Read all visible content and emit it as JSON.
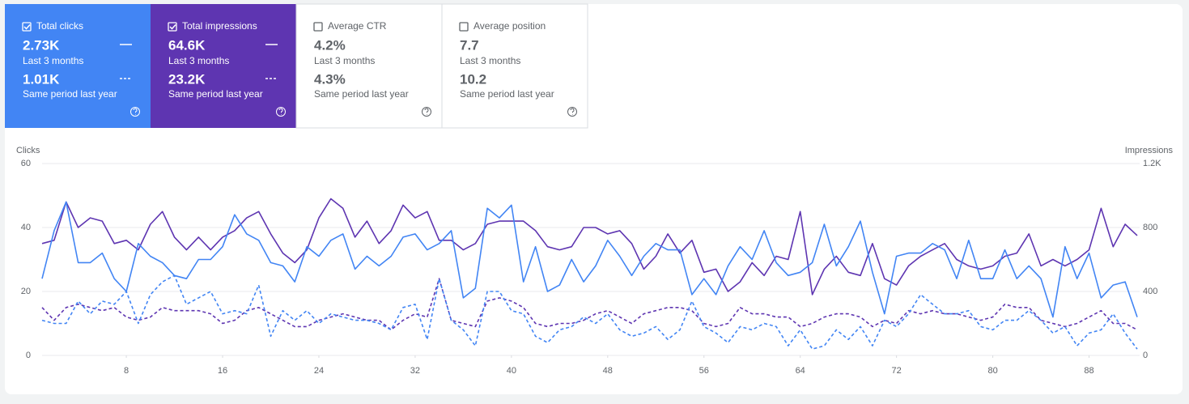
{
  "cards": [
    {
      "label": "Total clicks",
      "value": "2.73K",
      "period": "Last 3 months",
      "prior_value": "1.01K",
      "prior_period": "Same period last year",
      "selected": true,
      "color": "#4285f4"
    },
    {
      "label": "Total impressions",
      "value": "64.6K",
      "period": "Last 3 months",
      "prior_value": "23.2K",
      "prior_period": "Same period last year",
      "selected": true,
      "color": "#5e35b1"
    },
    {
      "label": "Average CTR",
      "value": "4.2%",
      "period": "Last 3 months",
      "prior_value": "4.3%",
      "prior_period": "Same period last year",
      "selected": false,
      "color": "#ffffff"
    },
    {
      "label": "Average position",
      "value": "7.7",
      "period": "Last 3 months",
      "prior_value": "10.2",
      "prior_period": "Same period last year",
      "selected": false,
      "color": "#ffffff"
    }
  ],
  "chart_data": {
    "type": "line",
    "y_label": "Clicks",
    "y2_label": "Impressions",
    "x": [
      1,
      2,
      3,
      4,
      5,
      6,
      7,
      8,
      9,
      10,
      11,
      12,
      13,
      14,
      15,
      16,
      17,
      18,
      19,
      20,
      21,
      22,
      23,
      24,
      25,
      26,
      27,
      28,
      29,
      30,
      31,
      32,
      33,
      34,
      35,
      36,
      37,
      38,
      39,
      40,
      41,
      42,
      43,
      44,
      45,
      46,
      47,
      48,
      49,
      50,
      51,
      52,
      53,
      54,
      55,
      56,
      57,
      58,
      59,
      60,
      61,
      62,
      63,
      64,
      65,
      66,
      67,
      68,
      69,
      70,
      71,
      72,
      73,
      74,
      75,
      76,
      77,
      78,
      79,
      80,
      81,
      82,
      83,
      84,
      85,
      86,
      87,
      88,
      89,
      90,
      91,
      92
    ],
    "xlim": [
      1,
      92
    ],
    "xticks": [
      8,
      16,
      24,
      32,
      40,
      48,
      56,
      64,
      72,
      80,
      88
    ],
    "ylim": [
      0,
      60
    ],
    "yticks": [
      0,
      20,
      40,
      60
    ],
    "y2lim": [
      0,
      1200
    ],
    "y2ticks": [
      0,
      400,
      800,
      {
        "value": 1200,
        "label": "1.2K"
      }
    ],
    "grid": true,
    "series": [
      {
        "color": "#5e35b1",
        "dashed": false,
        "axis": "y2",
        "values": [
          700,
          720,
          960,
          800,
          860,
          840,
          700,
          720,
          660,
          820,
          900,
          740,
          660,
          740,
          660,
          740,
          780,
          860,
          900,
          760,
          640,
          580,
          660,
          860,
          980,
          920,
          740,
          840,
          700,
          780,
          940,
          860,
          900,
          720,
          720,
          660,
          700,
          820,
          840,
          840,
          840,
          780,
          680,
          660,
          680,
          800,
          800,
          760,
          780,
          700,
          540,
          620,
          760,
          640,
          720,
          520,
          540,
          400,
          460,
          580,
          500,
          620,
          600,
          900,
          380,
          540,
          620,
          520,
          500,
          700,
          480,
          440,
          560,
          620,
          660,
          700,
          600,
          560,
          540,
          560,
          620,
          640,
          760,
          560,
          600,
          560,
          600,
          660,
          920,
          680,
          820,
          750
        ]
      },
      {
        "color": "#5e35b1",
        "dashed": true,
        "axis": "y2",
        "values": [
          300,
          220,
          300,
          320,
          300,
          280,
          300,
          240,
          220,
          240,
          300,
          280,
          280,
          280,
          260,
          200,
          220,
          280,
          300,
          260,
          220,
          180,
          180,
          220,
          240,
          260,
          240,
          220,
          220,
          160,
          220,
          260,
          240,
          480,
          220,
          200,
          180,
          340,
          360,
          340,
          300,
          200,
          180,
          200,
          200,
          220,
          260,
          280,
          240,
          200,
          260,
          280,
          300,
          300,
          280,
          200,
          180,
          200,
          300,
          260,
          260,
          240,
          240,
          180,
          200,
          240,
          260,
          260,
          240,
          180,
          220,
          200,
          280,
          260,
          280,
          260,
          260,
          240,
          220,
          240,
          320,
          300,
          300,
          220,
          200,
          180,
          200,
          240,
          280,
          200,
          200,
          160
        ]
      },
      {
        "color": "#4285f4",
        "dashed": false,
        "values": [
          24,
          39,
          48,
          29,
          29,
          32,
          24,
          20,
          35,
          31,
          29,
          25,
          24,
          30,
          30,
          34,
          44,
          38,
          36,
          29,
          28,
          23,
          34,
          31,
          36,
          38,
          27,
          31,
          28,
          31,
          37,
          38,
          33,
          35,
          39,
          18,
          21,
          46,
          43,
          47,
          23,
          34,
          20,
          22,
          30,
          23,
          28,
          36,
          31,
          25,
          31,
          35,
          33,
          33,
          19,
          24,
          19,
          28,
          34,
          30,
          39,
          29,
          25,
          26,
          29,
          41,
          28,
          34,
          42,
          26,
          13,
          31,
          32,
          32,
          35,
          33,
          24,
          36,
          24,
          24,
          33,
          24,
          28,
          24,
          12,
          34,
          24,
          32,
          18,
          22,
          23,
          12
        ]
      },
      {
        "color": "#4285f4",
        "dashed": true,
        "values": [
          11,
          10,
          10,
          17,
          13,
          17,
          16,
          20,
          10,
          19,
          23,
          25,
          16,
          18,
          20,
          13,
          14,
          13,
          22,
          6,
          14,
          11,
          14,
          10,
          13,
          12,
          11,
          11,
          10,
          8,
          15,
          16,
          5,
          24,
          11,
          8,
          3,
          20,
          20,
          14,
          13,
          6,
          4,
          8,
          9,
          12,
          10,
          13,
          8,
          6,
          7,
          9,
          5,
          8,
          17,
          9,
          7,
          4,
          9,
          8,
          10,
          9,
          3,
          8,
          2,
          3,
          8,
          5,
          9,
          3,
          11,
          9,
          13,
          19,
          16,
          13,
          13,
          14,
          9,
          8,
          11,
          11,
          14,
          11,
          7,
          9,
          3,
          7,
          8,
          13,
          7,
          2
        ]
      }
    ]
  }
}
